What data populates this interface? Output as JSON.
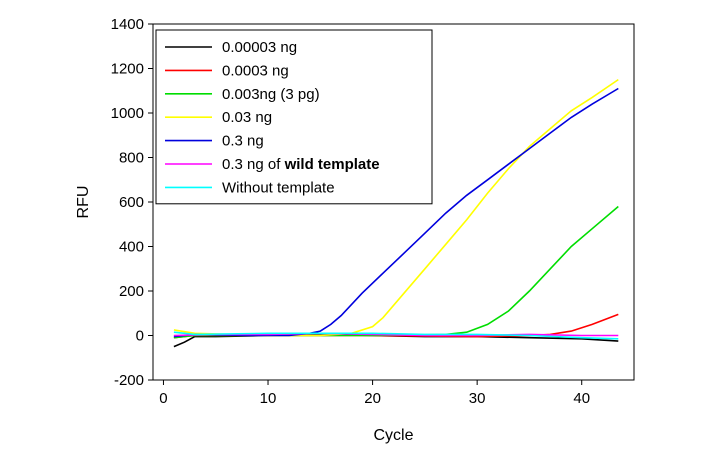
{
  "chart_data": {
    "type": "line",
    "title": "",
    "xlabel": "Cycle",
    "ylabel": "RFU",
    "xlim": [
      -1,
      45
    ],
    "ylim": [
      -200,
      1400
    ],
    "xticks": [
      0,
      10,
      20,
      30,
      40
    ],
    "yticks": [
      -200,
      0,
      200,
      400,
      600,
      800,
      1000,
      1200,
      1400
    ],
    "grid": false,
    "legend_position": "top-left",
    "series": [
      {
        "name": "0.00003 ng",
        "color": "#000000",
        "points": [
          [
            1,
            -50
          ],
          [
            2,
            -30
          ],
          [
            3,
            -5
          ],
          [
            5,
            -5
          ],
          [
            10,
            0
          ],
          [
            15,
            5
          ],
          [
            20,
            0
          ],
          [
            25,
            -5
          ],
          [
            30,
            -5
          ],
          [
            35,
            -10
          ],
          [
            40,
            -15
          ],
          [
            43.5,
            -25
          ]
        ]
      },
      {
        "name": "0.0003 ng",
        "color": "#ff0000",
        "points": [
          [
            1,
            -10
          ],
          [
            3,
            0
          ],
          [
            10,
            0
          ],
          [
            20,
            0
          ],
          [
            30,
            -5
          ],
          [
            35,
            0
          ],
          [
            37,
            5
          ],
          [
            39,
            20
          ],
          [
            41,
            50
          ],
          [
            43.5,
            95
          ]
        ]
      },
      {
        "name": "0.003ng (3 pg)",
        "color": "#00dd00",
        "points": [
          [
            1,
            -10
          ],
          [
            3,
            0
          ],
          [
            10,
            0
          ],
          [
            20,
            0
          ],
          [
            27,
            5
          ],
          [
            29,
            15
          ],
          [
            31,
            50
          ],
          [
            33,
            110
          ],
          [
            35,
            200
          ],
          [
            37,
            300
          ],
          [
            39,
            400
          ],
          [
            41,
            480
          ],
          [
            43.5,
            580
          ]
        ]
      },
      {
        "name": "0.03 ng",
        "color": "#ffff00",
        "points": [
          [
            1,
            25
          ],
          [
            3,
            10
          ],
          [
            10,
            0
          ],
          [
            15,
            0
          ],
          [
            18,
            10
          ],
          [
            20,
            40
          ],
          [
            21,
            80
          ],
          [
            23,
            190
          ],
          [
            25,
            300
          ],
          [
            27,
            410
          ],
          [
            29,
            520
          ],
          [
            31,
            640
          ],
          [
            33,
            750
          ],
          [
            35,
            850
          ],
          [
            37,
            930
          ],
          [
            39,
            1010
          ],
          [
            41,
            1070
          ],
          [
            43.5,
            1150
          ]
        ]
      },
      {
        "name": "0.3 ng",
        "color": "#0000dd",
        "points": [
          [
            1,
            -5
          ],
          [
            3,
            5
          ],
          [
            8,
            0
          ],
          [
            12,
            0
          ],
          [
            14,
            10
          ],
          [
            15,
            20
          ],
          [
            16,
            50
          ],
          [
            17,
            90
          ],
          [
            19,
            190
          ],
          [
            21,
            280
          ],
          [
            23,
            370
          ],
          [
            25,
            460
          ],
          [
            27,
            550
          ],
          [
            29,
            630
          ],
          [
            31,
            700
          ],
          [
            33,
            770
          ],
          [
            35,
            840
          ],
          [
            37,
            910
          ],
          [
            39,
            980
          ],
          [
            41,
            1040
          ],
          [
            43.5,
            1110
          ]
        ]
      },
      {
        "name": "0.3 ng of wild template",
        "name_prefix": "0.3 ng of ",
        "name_bold": "wild template",
        "color": "#ff00ff",
        "points": [
          [
            1,
            0
          ],
          [
            5,
            5
          ],
          [
            10,
            5
          ],
          [
            15,
            10
          ],
          [
            20,
            5
          ],
          [
            25,
            0
          ],
          [
            30,
            0
          ],
          [
            35,
            5
          ],
          [
            40,
            0
          ],
          [
            43.5,
            0
          ]
        ]
      },
      {
        "name": "Without template",
        "color": "#00ffff",
        "points": [
          [
            1,
            15
          ],
          [
            3,
            5
          ],
          [
            10,
            10
          ],
          [
            15,
            10
          ],
          [
            20,
            10
          ],
          [
            25,
            5
          ],
          [
            30,
            5
          ],
          [
            35,
            0
          ],
          [
            40,
            -10
          ],
          [
            43.5,
            -15
          ]
        ]
      }
    ]
  }
}
